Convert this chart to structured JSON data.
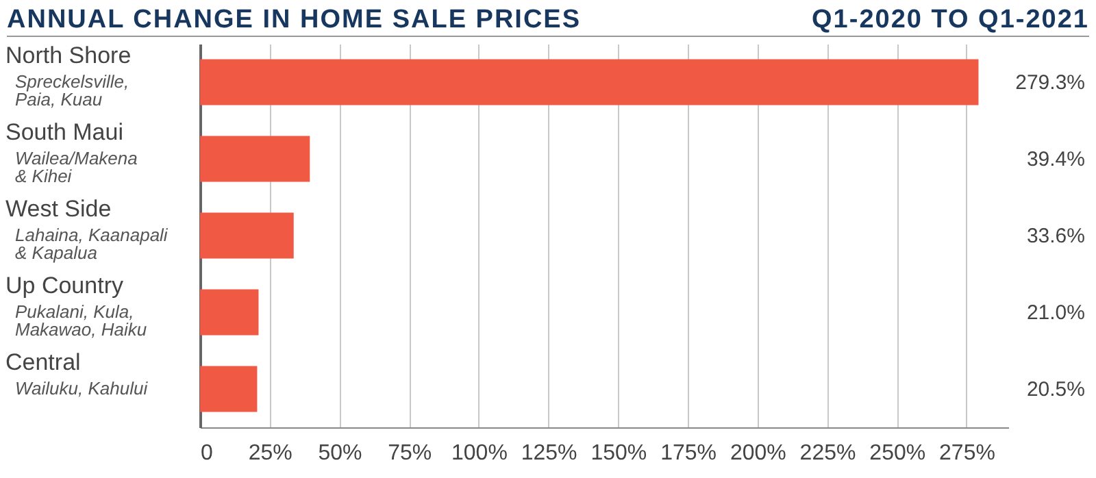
{
  "chart_data": {
    "type": "bar",
    "orientation": "horizontal",
    "title": "ANNUAL CHANGE IN HOME SALE PRICES",
    "subtitle": "Q1-2020 TO Q1-2021",
    "categories": [
      "North Shore\nSpreckelsville,\nPaia, Kuau",
      "South Maui\nWailea/Makena\n& Kihei",
      "West Side\nLahaina, Kaanapali\n& Kapalua",
      "Up Country\nPukalani, Kula,\nMakawao, Haiku",
      "Central\nWailuku, Kahului"
    ],
    "values": [
      279.3,
      39.4,
      33.6,
      21.0,
      20.5
    ],
    "value_labels": [
      "279.3%",
      "39.4%",
      "33.6%",
      "21.0%",
      "20.5%"
    ],
    "color": "#f05a45",
    "xlim": [
      0,
      290
    ],
    "xticks": [
      0,
      {
        "value": 25,
        "label": "25%"
      },
      {
        "value": 50,
        "label": "50%"
      },
      {
        "value": 75,
        "label": "75%"
      },
      {
        "value": 100,
        "label": "100%"
      },
      {
        "value": 125,
        "label": "125%"
      },
      {
        "value": 150,
        "label": "150%"
      },
      {
        "value": 175,
        "label": "175%"
      },
      {
        "value": 200,
        "label": "200%"
      },
      {
        "value": 225,
        "label": "225%"
      },
      {
        "value": 250,
        "label": "250%"
      },
      {
        "value": 275,
        "label": "275%"
      }
    ],
    "grid": "x"
  }
}
